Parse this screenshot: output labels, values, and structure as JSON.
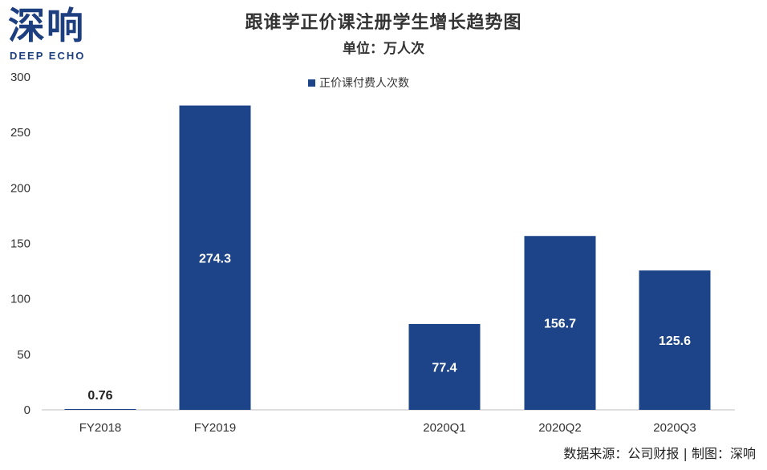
{
  "logo": {
    "cn": "深响",
    "en": "DEEP ECHO"
  },
  "source_note": "数据来源：公司财报 | 制图：深响",
  "chart_data": {
    "type": "bar",
    "title": "跟谁学正价课注册学生增长趋势图",
    "subtitle": "单位：万人次",
    "categories": [
      "FY2018",
      "FY2019",
      "2020Q1",
      "2020Q2",
      "2020Q3"
    ],
    "series": [
      {
        "name": "正价课付费人次数",
        "values": [
          0.76,
          274.3,
          77.4,
          156.7,
          125.6
        ]
      }
    ],
    "value_labels": [
      "0.76",
      "274.3",
      "77.4",
      "156.7",
      "125.6"
    ],
    "ylim": [
      0,
      300
    ],
    "yticks": [
      "0",
      "50",
      "100",
      "150",
      "200",
      "250",
      "300"
    ],
    "xlabel": "",
    "ylabel": "",
    "grid": false,
    "legend_position": "top",
    "bar_color": "#1d4488"
  }
}
